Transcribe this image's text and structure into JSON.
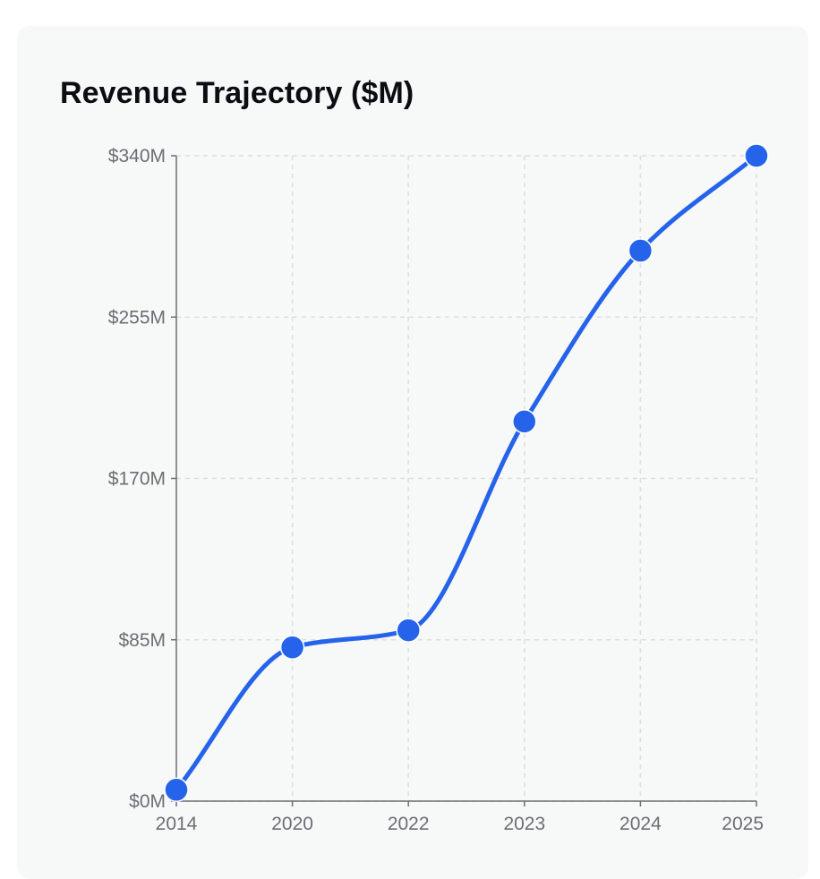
{
  "chart_data": {
    "type": "line",
    "title": "Revenue Trajectory ($M)",
    "xlabel": "",
    "ylabel": "",
    "categories": [
      "2014",
      "2020",
      "2022",
      "2023",
      "2024",
      "2025"
    ],
    "series": [
      {
        "name": "Revenue",
        "values": [
          6,
          81,
          90,
          200,
          290,
          340
        ]
      }
    ],
    "ylim": [
      0,
      340
    ],
    "yticks": [
      0,
      85,
      170,
      255,
      340
    ],
    "ytick_labels": [
      "$0M",
      "$85M",
      "$170M",
      "$255M",
      "$340M"
    ],
    "grid": true,
    "line_color": "#2563eb",
    "grid_color": "#dcdedf",
    "axis_color": "#6b6e73"
  }
}
